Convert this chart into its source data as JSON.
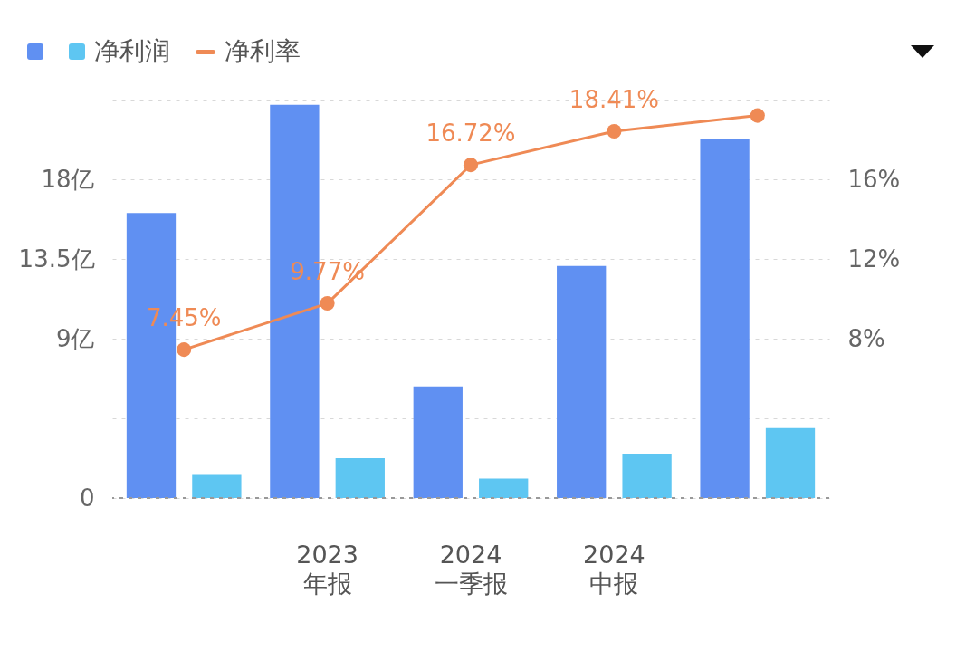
{
  "chart_data": {
    "type": "bar",
    "categories": [
      null,
      "2023\n年报",
      "2024\n一季报",
      "2024\n中报",
      null
    ],
    "series": [
      {
        "color": "#6090f2",
        "values": [
          16.1,
          22.2,
          6.3,
          13.1,
          20.3
        ]
      },
      {
        "name": "净利润",
        "color": "#5ec6f2",
        "values": [
          1.3,
          2.25,
          1.1,
          2.5,
          3.95
        ]
      },
      {
        "name": "净利率",
        "type": "line",
        "axis": "y2",
        "color": "#ef8a55",
        "values": [
          7.45,
          9.77,
          16.72,
          18.41,
          19.2
        ],
        "value_labels": [
          "7.45%",
          "9.77%",
          "16.72%",
          "18.41%",
          null
        ]
      }
    ],
    "ylim": [
      0,
      22.5
    ],
    "yticks": [
      0,
      {
        "value": 4.5,
        "label": null
      },
      {
        "value": 9,
        "label": "9亿"
      },
      {
        "value": 13.5,
        "label": "13.5亿"
      },
      {
        "value": 18,
        "label": "18亿"
      },
      {
        "value": 22.5,
        "label": null
      }
    ],
    "y2lim": [
      0,
      20
    ],
    "y2ticks": [
      {
        "value": 0,
        "label": null
      },
      {
        "value": 4,
        "label": null
      },
      {
        "value": 8,
        "label": "8%"
      },
      {
        "value": 12,
        "label": "12%"
      },
      {
        "value": 16,
        "label": "16%"
      },
      {
        "value": 20,
        "label": null
      }
    ],
    "grid": "y",
    "legend": "top left",
    "marker": "circle",
    "line_style": "solid"
  }
}
